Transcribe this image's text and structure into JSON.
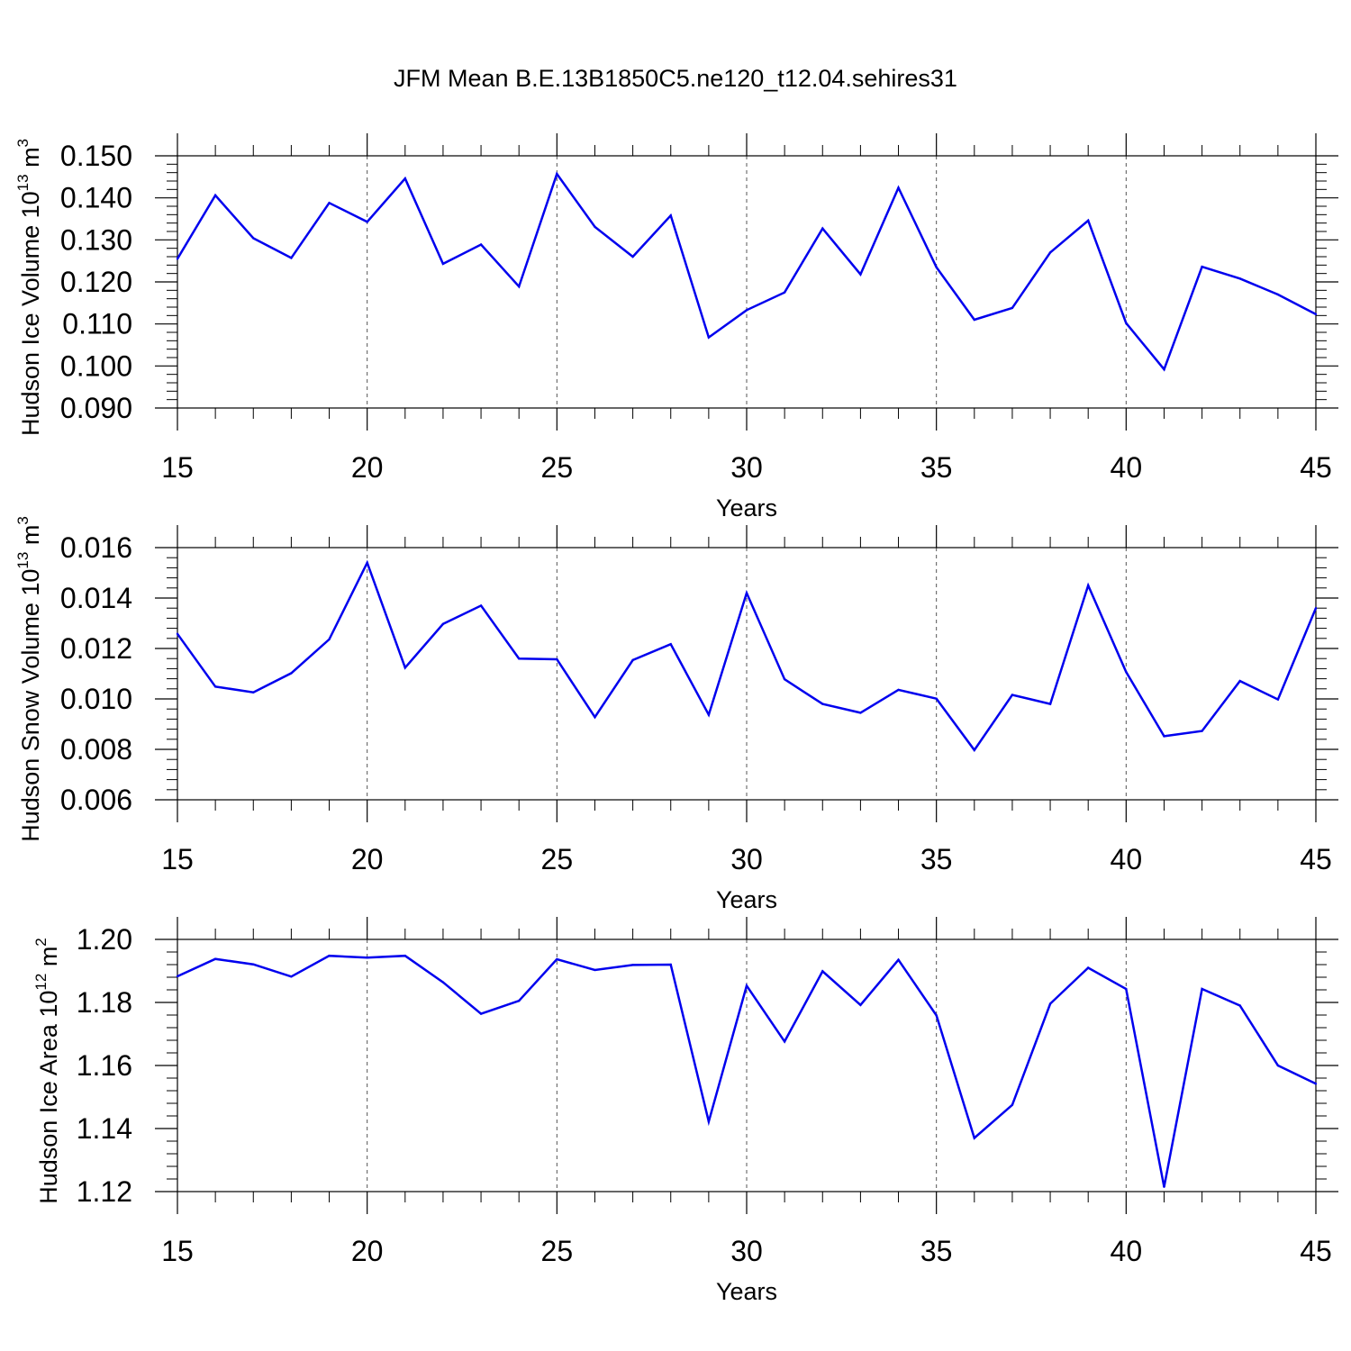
{
  "title": "JFM Mean B.E.13B1850C5.ne120_t12.04.sehires31",
  "line_color": "#0000ee",
  "grid_color": "#555555",
  "chart_data": [
    {
      "type": "line",
      "name": "ice-volume",
      "ylabel": {
        "main": "Hudson Ice Volume 10",
        "exp": "13",
        "unit": " m",
        "unit_exp": "3"
      },
      "xlabel": "Years",
      "xlim": [
        15,
        45
      ],
      "ylim": [
        0.09,
        0.15
      ],
      "xticks": [
        15,
        20,
        25,
        30,
        35,
        40,
        45
      ],
      "yticks": [
        0.09,
        0.1,
        0.11,
        0.12,
        0.13,
        0.14,
        0.15
      ],
      "ytick_labels": [
        "0.090",
        "0.100",
        "0.110",
        "0.120",
        "0.130",
        "0.140",
        "0.150"
      ],
      "x": [
        15,
        16,
        17,
        18,
        19,
        20,
        21,
        22,
        23,
        24,
        25,
        26,
        27,
        28,
        29,
        30,
        31,
        32,
        33,
        34,
        35,
        36,
        37,
        38,
        39,
        40,
        41,
        42,
        43,
        44,
        45
      ],
      "values": [
        0.1255,
        0.1406,
        0.1304,
        0.1257,
        0.1388,
        0.1343,
        0.1446,
        0.1243,
        0.1289,
        0.1189,
        0.1457,
        0.1331,
        0.126,
        0.1358,
        0.1068,
        0.1133,
        0.1175,
        0.1327,
        0.1218,
        0.1424,
        0.1235,
        0.111,
        0.1138,
        0.127,
        0.1346,
        0.1102,
        0.0992,
        0.1236,
        0.1208,
        0.117,
        0.1123
      ],
      "grid": true
    },
    {
      "type": "line",
      "name": "snow-volume",
      "ylabel": {
        "main": "Hudson Snow Volume 10",
        "exp": "13",
        "unit": " m",
        "unit_exp": "3"
      },
      "xlabel": "Years",
      "xlim": [
        15,
        45
      ],
      "ylim": [
        0.006,
        0.016
      ],
      "xticks": [
        15,
        20,
        25,
        30,
        35,
        40,
        45
      ],
      "yticks": [
        0.006,
        0.008,
        0.01,
        0.012,
        0.014,
        0.016
      ],
      "ytick_labels": [
        "0.006",
        "0.008",
        "0.010",
        "0.012",
        "0.014",
        "0.016"
      ],
      "x": [
        15,
        16,
        17,
        18,
        19,
        20,
        21,
        22,
        23,
        24,
        25,
        26,
        27,
        28,
        29,
        30,
        31,
        32,
        33,
        34,
        35,
        36,
        37,
        38,
        39,
        40,
        41,
        42,
        43,
        44,
        45
      ],
      "values": [
        0.01258,
        0.01049,
        0.01026,
        0.01102,
        0.01236,
        0.0154,
        0.01124,
        0.01297,
        0.0137,
        0.0116,
        0.01157,
        0.00928,
        0.01154,
        0.01217,
        0.00937,
        0.0142,
        0.01078,
        0.0098,
        0.00945,
        0.01036,
        0.01001,
        0.00797,
        0.01016,
        0.0098,
        0.0145,
        0.01107,
        0.00852,
        0.00873,
        0.01071,
        0.00998,
        0.0136
      ],
      "grid": true
    },
    {
      "type": "line",
      "name": "ice-area",
      "ylabel": {
        "main": "Hudson Ice Area 10",
        "exp": "12",
        "unit": " m",
        "unit_exp": "2"
      },
      "xlabel": "Years",
      "xlim": [
        15,
        45
      ],
      "ylim": [
        1.12,
        1.2
      ],
      "xticks": [
        15,
        20,
        25,
        30,
        35,
        40,
        45
      ],
      "yticks": [
        1.12,
        1.14,
        1.16,
        1.18,
        1.2
      ],
      "ytick_labels": [
        "1.12",
        "1.14",
        "1.16",
        "1.18",
        "1.20"
      ],
      "x": [
        15,
        16,
        17,
        18,
        19,
        20,
        21,
        22,
        23,
        24,
        25,
        26,
        27,
        28,
        29,
        30,
        31,
        32,
        33,
        34,
        35,
        36,
        37,
        38,
        39,
        40,
        41,
        42,
        43,
        44,
        45
      ],
      "values": [
        1.1883,
        1.1938,
        1.1921,
        1.1882,
        1.1948,
        1.1942,
        1.1948,
        1.1864,
        1.1764,
        1.1805,
        1.1937,
        1.1903,
        1.1919,
        1.192,
        1.1422,
        1.1853,
        1.1676,
        1.1899,
        1.1792,
        1.1935,
        1.1759,
        1.137,
        1.1475,
        1.1796,
        1.191,
        1.1843,
        1.1215,
        1.1843,
        1.179,
        1.16,
        1.1542
      ],
      "grid": true
    }
  ]
}
